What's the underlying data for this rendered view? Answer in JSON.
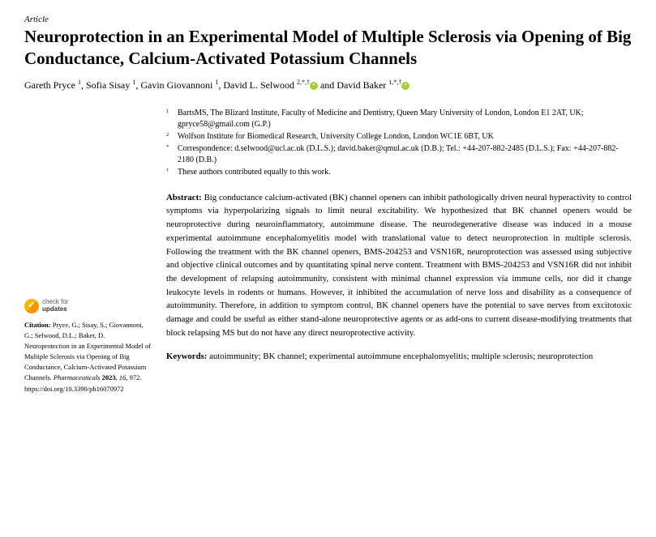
{
  "article_type": "Article",
  "title": "Neuroprotection in an Experimental Model of Multiple Sclerosis via Opening of Big Conductance, Calcium-Activated Potassium Channels",
  "authors_html": "Gareth Pryce <sup>1</sup>, Sofia Sisay <sup>1</sup>, Gavin Giovannoni <sup>1</sup>, David L. Selwood <sup>2,*,†</sup> ORCID and David Baker <sup>1,*,†</sup> ORCID",
  "authors": [
    {
      "name": "Gareth Pryce",
      "mark": "1"
    },
    {
      "name": "Sofia Sisay",
      "mark": "1"
    },
    {
      "name": "Gavin Giovannoni",
      "mark": "1"
    },
    {
      "name": "David L. Selwood",
      "mark": "2,*,†",
      "orcid": true
    },
    {
      "name": "David Baker",
      "mark": "1,*,†",
      "orcid": true
    }
  ],
  "affiliations": [
    {
      "marker": "1",
      "text": "BartsMS, The Blizard Institute, Faculty of Medicine and Dentistry, Queen Mary University of London, London E1 2AT, UK; gpryce58@gmail.com (G.P.)"
    },
    {
      "marker": "2",
      "text": "Wolfson Institute for Biomedical Research, University College London, London WC1E 6BT, UK"
    },
    {
      "marker": "*",
      "text": "Correspondence: d.selwood@ucl.ac.uk (D.L.S.); david.baker@qmul.ac.uk (D.B.); Tel.: +44-207-882-2485 (D.L.S.); Fax: +44-207-882-2180 (D.B.)"
    },
    {
      "marker": "†",
      "text": "These authors contributed equally to this work."
    }
  ],
  "abstract_label": "Abstract:",
  "abstract": "Big conductance calcium-activated (BK) channel openers can inhibit pathologically driven neural hyperactivity to control symptoms via hyperpolarizing signals to limit neural excitability. We hypothesized that BK channel openers would be neuroprotective during neuroinflammatory, autoimmune disease. The neurodegenerative disease was induced in a mouse experimental autoimmune encephalomyelitis model with translational value to detect neuroprotection in multiple sclerosis. Following the treatment with the BK channel openers, BMS-204253 and VSN16R, neuroprotection was assessed using subjective and objective clinical outcomes and by quantitating spinal nerve content. Treatment with BMS-204253 and VSN16R did not inhibit the development of relapsing autoimmunity, consistent with minimal channel expression via immune cells, nor did it change leukocyte levels in rodents or humans. However, it inhibited the accumulation of nerve loss and disability as a consequence of autoimmunity. Therefore, in addition to symptom control, BK channel openers have the potential to save nerves from excitotoxic damage and could be useful as either stand-alone neuroprotective agents or as add-ons to current disease-modifying treatments that block relapsing MS but do not have any direct neuroprotective activity.",
  "keywords_label": "Keywords:",
  "keywords": "autoimmunity; BK channel; experimental autoimmune encephalomyelitis; multiple sclerosis; neuroprotection",
  "check_updates": {
    "line1": "check for",
    "line2": "updates"
  },
  "citation": {
    "label": "Citation:",
    "text": "Pryce, G.; Sisay, S.; Giovannoni, G.; Selwood, D.L.; Baker, D. Neuroprotection in an Experimental Model of Multiple Sclerosis via Opening of Big Conductance, Calcium-Activated Potassium Channels. ",
    "journal": "Pharmaceuticals",
    "year_vol": "2023, 16, 972. ",
    "doi": "https://doi.org/10.3390/ph16070972"
  },
  "colors": {
    "text": "#000000",
    "orcid": "#a6ce39",
    "badge_top": "#f7b500",
    "badge_bot": "#f79400"
  }
}
